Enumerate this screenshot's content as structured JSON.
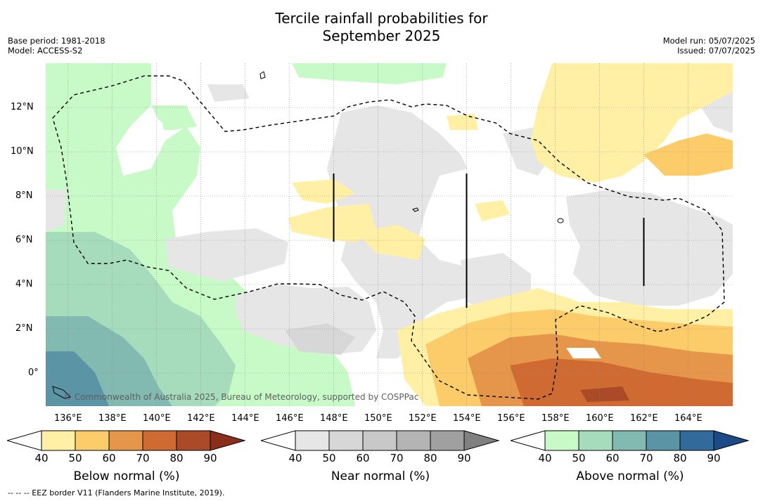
{
  "title_line1": "Tercile rainfall probabilities for",
  "title_line2": "September 2025",
  "meta_left": [
    "Base period: 1981-2018",
    "Model: ACCESS-S2"
  ],
  "meta_right": [
    "Model run: 05/07/2025",
    "Issued: 07/07/2025"
  ],
  "credit": "© Commonwealth of Australia 2025, Bureau of Meteorology, supported by COSPPac",
  "footnote": "--  --  -- EEZ border V11 (Flanders Marine Institute, 2019).",
  "map": {
    "lon_range": [
      135,
      166
    ],
    "lat_range": [
      -1.5,
      14
    ],
    "lon_ticks": [
      "136°E",
      "138°E",
      "140°E",
      "142°E",
      "144°E",
      "146°E",
      "148°E",
      "150°E",
      "152°E",
      "154°E",
      "156°E",
      "158°E",
      "160°E",
      "162°E",
      "164°E"
    ],
    "lat_ticks": [
      "0°",
      "2°N",
      "4°N",
      "6°N",
      "8°N",
      "10°N",
      "12°N"
    ]
  },
  "colorbars": [
    {
      "title": "Below normal (%)",
      "labels": [
        "40",
        "50",
        "60",
        "70",
        "80",
        "90"
      ],
      "colors": [
        "#fff0a5",
        "#fdcc6a",
        "#e5964b",
        "#cf6a33",
        "#ab4a27",
        "#8c2e1c"
      ]
    },
    {
      "title": "Near normal (%)",
      "labels": [
        "40",
        "50",
        "60",
        "70",
        "80",
        "90"
      ],
      "colors": [
        "#e6e6e6",
        "#d7d7d7",
        "#c8c8c8",
        "#b4b4b4",
        "#a0a0a0",
        "#808080"
      ]
    },
    {
      "title": "Above normal (%)",
      "labels": [
        "40",
        "50",
        "60",
        "70",
        "80",
        "90"
      ],
      "colors": [
        "#c8fac8",
        "#a6dbbc",
        "#82b9b1",
        "#5b94a5",
        "#336a9c",
        "#1c4a86"
      ]
    }
  ]
}
